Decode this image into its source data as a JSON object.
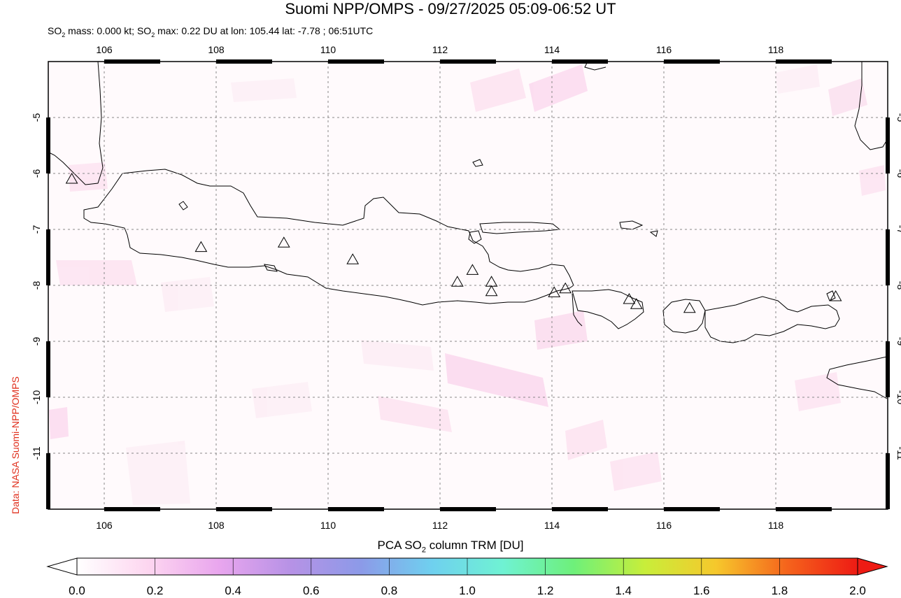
{
  "title": "Suomi NPP/OMPS - 09/27/2025 05:09-06:52 UT",
  "subtitle": {
    "mass_prefix": "SO",
    "mass_sub": "2",
    "mass_text": " mass: 0.000 kt; SO",
    "max_sub": "2",
    "max_text": " max: 0.22 DU at lon: 105.44 lat: -7.78 ; 06:51UTC"
  },
  "credit": "Data: NASA Suomi-NPP/OMPS",
  "map": {
    "lon_range": [
      105,
      120
    ],
    "lat_range": [
      -12,
      -4
    ],
    "lon_ticks": [
      "106",
      "108",
      "110",
      "112",
      "114",
      "116",
      "118"
    ],
    "lat_ticks": [
      "-5",
      "-6",
      "-7",
      "-8",
      "-9",
      "-10",
      "-11"
    ],
    "grid": "dashed",
    "volcano_marker": "triangle-icon",
    "volcanoes": [
      {
        "lon": 105.42,
        "lat": -6.1
      },
      {
        "lon": 107.73,
        "lat": -7.32
      },
      {
        "lon": 109.21,
        "lat": -7.24
      },
      {
        "lon": 110.44,
        "lat": -7.54
      },
      {
        "lon": 112.31,
        "lat": -7.94
      },
      {
        "lon": 112.58,
        "lat": -7.73
      },
      {
        "lon": 112.92,
        "lat": -7.94
      },
      {
        "lon": 112.92,
        "lat": -8.11
      },
      {
        "lon": 114.04,
        "lat": -8.13
      },
      {
        "lon": 114.24,
        "lat": -8.06
      },
      {
        "lon": 115.38,
        "lat": -8.25
      },
      {
        "lon": 115.51,
        "lat": -8.34
      },
      {
        "lon": 116.46,
        "lat": -8.41
      },
      {
        "lon": 119.07,
        "lat": -8.2
      }
    ]
  },
  "colorbar": {
    "label_prefix": "PCA SO",
    "label_sub": "2",
    "label_suffix": " column TRM [DU]",
    "ticks": [
      "0.0",
      "0.2",
      "0.4",
      "0.6",
      "0.8",
      "1.0",
      "1.2",
      "1.4",
      "1.6",
      "1.8",
      "2.0"
    ],
    "stops": [
      "#ffffff",
      "#fdd6f0",
      "#e9a6ee",
      "#b792e6",
      "#8c9ae8",
      "#6fd0ef",
      "#6ff2d3",
      "#6ef07a",
      "#c8ee3a",
      "#f6c82c",
      "#f5641c",
      "#ee1b14"
    ]
  },
  "colors": {
    "credit": "#e0301e",
    "frame": "#000000",
    "faint_pink": "#fde8f3"
  }
}
